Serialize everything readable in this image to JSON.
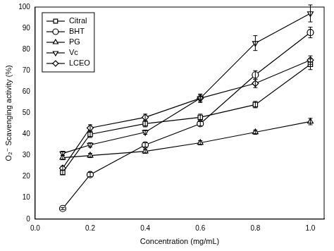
{
  "chart_data": {
    "type": "line",
    "x_label": "Concentration (mg/mL)",
    "y_label": "O₂⁻ Scavenging activity (%)",
    "x": [
      0.1,
      0.2,
      0.4,
      0.6,
      0.8,
      1.0
    ],
    "series": [
      {
        "name": "Citral",
        "color": "#000000",
        "marker": "square",
        "values": [
          22,
          40,
          45,
          48,
          54,
          73
        ],
        "errors": [
          1,
          1.5,
          1.5,
          1.5,
          1.5,
          2.5
        ]
      },
      {
        "name": "BHT",
        "color": "#000000",
        "marker": "circle",
        "values": [
          5,
          21,
          35,
          45,
          68,
          88
        ],
        "errors": [
          0.5,
          1,
          1,
          1,
          2,
          2.5
        ]
      },
      {
        "name": "PG",
        "color": "#000000",
        "marker": "triangle",
        "values": [
          29,
          30,
          32,
          36,
          41,
          46
        ],
        "errors": [
          1,
          1,
          1,
          1,
          1,
          1.5
        ]
      },
      {
        "name": "Vc",
        "color": "#000000",
        "marker": "triangle-down",
        "values": [
          31,
          35,
          41,
          57,
          83,
          97
        ],
        "errors": [
          1,
          1,
          1,
          1.5,
          3.5,
          4
        ]
      },
      {
        "name": "LCEO",
        "color": "#000000",
        "marker": "diamond",
        "values": [
          24,
          43,
          48,
          57,
          64,
          75
        ],
        "errors": [
          1,
          1.5,
          1.5,
          2,
          2,
          2
        ]
      }
    ],
    "xlim": [
      0,
      1.05
    ],
    "xticks": [
      {
        "value": 0,
        "label": "0.0"
      },
      {
        "value": 0.2,
        "label": "0.2"
      },
      {
        "value": 0.4,
        "label": "0.4"
      },
      {
        "value": 0.6,
        "label": "0.6"
      },
      {
        "value": 0.8,
        "label": "0.8"
      },
      {
        "value": 1.0,
        "label": "1.0"
      }
    ],
    "ylim": [
      0,
      100
    ],
    "yticks": [
      0,
      10,
      20,
      30,
      40,
      50,
      60,
      70,
      80,
      90,
      100
    ],
    "grid": false,
    "legend": "top-left"
  }
}
